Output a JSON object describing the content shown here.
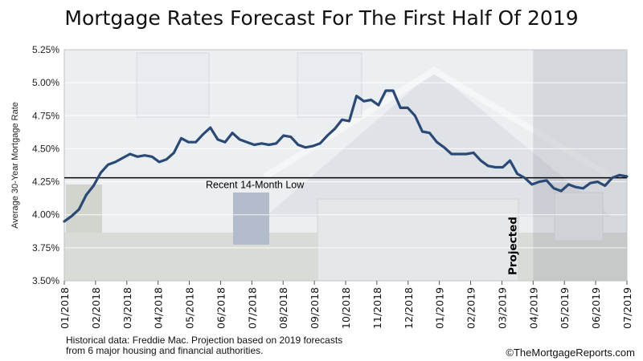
{
  "chart_data": {
    "type": "line",
    "title": "Mortgage Rates Forecast For The First Half Of 2019",
    "xlabel": "",
    "ylabel": "Average 30-Year Mortgage Rate",
    "ylim": [
      3.5,
      5.25
    ],
    "yticks": [
      3.5,
      3.75,
      4.0,
      4.25,
      4.5,
      4.75,
      5.0,
      5.25
    ],
    "ytick_labels": [
      "3.50%",
      "3.75%",
      "4.00%",
      "4.25%",
      "4.50%",
      "4.75%",
      "5.00%",
      "5.25%"
    ],
    "xtick_labels": [
      "01/2018",
      "02/2018",
      "03/2018",
      "04/2018",
      "05/2018",
      "06/2018",
      "07/2018",
      "08/2018",
      "09/2018",
      "10/2018",
      "11/2018",
      "12/2018",
      "01/2019",
      "02/2019",
      "03/2019",
      "04/2019",
      "05/2019",
      "06/2019",
      "07/2019"
    ],
    "grid": true,
    "series": [
      {
        "color": "#2a4a75",
        "values": [
          3.95,
          3.99,
          4.04,
          4.15,
          4.22,
          4.32,
          4.38,
          4.4,
          4.43,
          4.46,
          4.44,
          4.45,
          4.44,
          4.4,
          4.42,
          4.47,
          4.58,
          4.55,
          4.55,
          4.61,
          4.66,
          4.57,
          4.55,
          4.62,
          4.57,
          4.55,
          4.53,
          4.54,
          4.53,
          4.54,
          4.6,
          4.59,
          4.53,
          4.51,
          4.52,
          4.54,
          4.6,
          4.65,
          4.72,
          4.71,
          4.9,
          4.86,
          4.87,
          4.83,
          4.94,
          4.94,
          4.81,
          4.81,
          4.75,
          4.63,
          4.62,
          4.55,
          4.51,
          4.46,
          4.46,
          4.46,
          4.47,
          4.41,
          4.37,
          4.36,
          4.36,
          4.41,
          4.31,
          4.28,
          4.23,
          4.25,
          4.26,
          4.2,
          4.18,
          4.23,
          4.21,
          4.2,
          4.24,
          4.25,
          4.22,
          4.28,
          4.3,
          4.29
        ]
      }
    ],
    "reference_line": {
      "value": 4.28,
      "label": "Recent 14-Month Low"
    },
    "projection": {
      "start": "04/2019",
      "label": "Projected"
    }
  },
  "footnote_lines": [
    "Historical data: Freddie Mac. Projection based on 2019 forecasts",
    "from 6 major housing and financial authorities."
  ],
  "copyright": "©TheMortgageReports.com"
}
